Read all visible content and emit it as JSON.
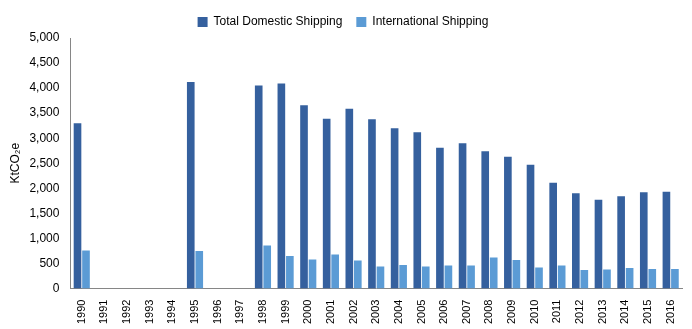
{
  "chart_data": {
    "type": "bar",
    "y_label": "KtCO₂e",
    "categories": [
      "1990",
      "1991",
      "1992",
      "1993",
      "1994",
      "1995",
      "1996",
      "1997",
      "1998",
      "1999",
      "2000",
      "2001",
      "2002",
      "2003",
      "2004",
      "2005",
      "2006",
      "2007",
      "2008",
      "2009",
      "2010",
      "2011",
      "2012",
      "2013",
      "2014",
      "2015",
      "2016"
    ],
    "series": [
      {
        "name": "Total Domestic Shipping",
        "color": "#35609e",
        "values": [
          3300,
          null,
          null,
          null,
          null,
          4120,
          null,
          null,
          4050,
          4090,
          3660,
          3390,
          3590,
          3380,
          3200,
          3120,
          2810,
          2900,
          2740,
          2630,
          2470,
          2110,
          1900,
          1770,
          1840,
          1920,
          1930
        ]
      },
      {
        "name": "International Shipping",
        "color": "#5b9bd5",
        "values": [
          760,
          null,
          null,
          null,
          null,
          750,
          null,
          null,
          860,
          650,
          580,
          680,
          560,
          440,
          470,
          440,
          460,
          460,
          620,
          570,
          420,
          460,
          370,
          380,
          410,
          390,
          390
        ]
      }
    ],
    "ylim": [
      0,
      5000
    ],
    "yticks": [
      0,
      500,
      {
        "value": 1000,
        "label": "1,000"
      },
      {
        "value": 1500,
        "label": "1,500"
      },
      {
        "value": 2000,
        "label": "2,000"
      },
      {
        "value": 2500,
        "label": "2,500"
      },
      {
        "value": 3000,
        "label": "3,000"
      },
      {
        "value": 3500,
        "label": "3,500"
      },
      {
        "value": 4000,
        "label": "4,000"
      },
      {
        "value": 4500,
        "label": "4,500"
      },
      {
        "value": 5000,
        "label": "5,000"
      }
    ],
    "grid": false,
    "legend": "top"
  }
}
